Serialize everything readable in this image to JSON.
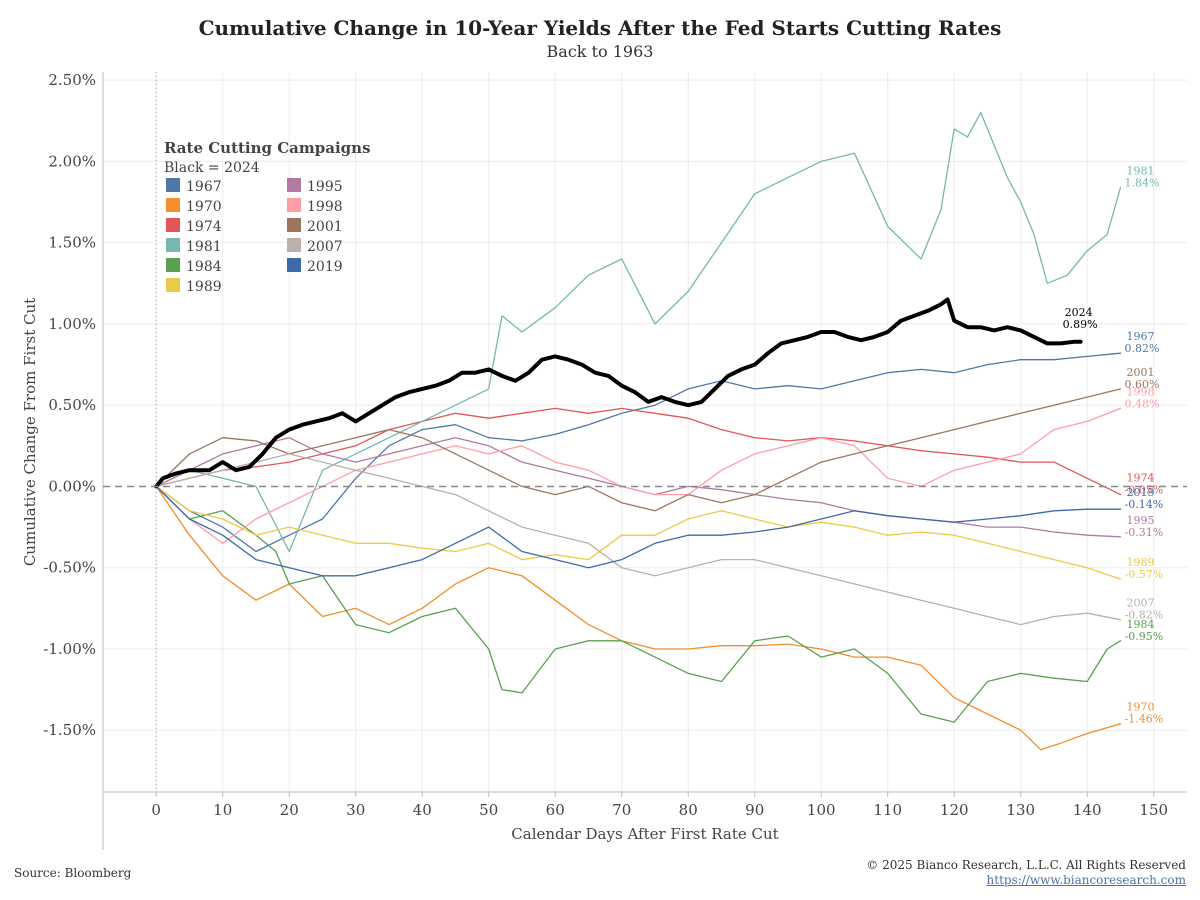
{
  "chart_data": {
    "type": "line",
    "title": "Cumulative Change in 10-Year Yields After the Fed Starts Cutting Rates",
    "subtitle": "Back to 1963",
    "xlabel": "Calendar Days After First Rate Cut",
    "ylabel": "Cumulative Change From First Cut",
    "xlim": [
      -8,
      155
    ],
    "ylim": [
      -1.88,
      2.55
    ],
    "x_ticks": [
      "0",
      "10",
      "20",
      "30",
      "40",
      "50",
      "60",
      "70",
      "80",
      "90",
      "100",
      "110",
      "120",
      "130",
      "140",
      "150"
    ],
    "y_ticks": [
      "2.50%",
      "2.00%",
      "1.50%",
      "1.00%",
      "0.50%",
      "0.00%",
      "-0.50%",
      "-1.00%",
      "-1.50%"
    ],
    "grid": true,
    "legend_title": "Rate Cutting Campaigns",
    "legend_subtitle": "Black = 2024",
    "legend_placement": "top-left",
    "series": [
      {
        "name": "1967",
        "color": "#4e79a7",
        "end_label": "0.82%",
        "x": [
          0,
          5,
          10,
          15,
          20,
          25,
          30,
          35,
          40,
          45,
          50,
          55,
          60,
          65,
          70,
          75,
          80,
          85,
          90,
          95,
          100,
          105,
          110,
          115,
          120,
          125,
          130,
          135,
          140,
          145
        ],
        "y": [
          0,
          -0.15,
          -0.25,
          -0.4,
          -0.3,
          -0.2,
          0.05,
          0.25,
          0.35,
          0.38,
          0.3,
          0.28,
          0.32,
          0.38,
          0.45,
          0.5,
          0.6,
          0.65,
          0.6,
          0.62,
          0.6,
          0.65,
          0.7,
          0.72,
          0.7,
          0.75,
          0.78,
          0.78,
          0.8,
          0.82
        ]
      },
      {
        "name": "1970",
        "color": "#f28e2b",
        "end_label": "-1.46%",
        "x": [
          0,
          5,
          10,
          15,
          20,
          25,
          30,
          35,
          40,
          45,
          50,
          55,
          60,
          65,
          70,
          75,
          80,
          85,
          90,
          95,
          100,
          105,
          110,
          115,
          120,
          125,
          130,
          133,
          136,
          140,
          145
        ],
        "y": [
          0,
          -0.3,
          -0.55,
          -0.7,
          -0.6,
          -0.8,
          -0.75,
          -0.85,
          -0.75,
          -0.6,
          -0.5,
          -0.55,
          -0.7,
          -0.85,
          -0.95,
          -1.0,
          -1.0,
          -0.98,
          -0.98,
          -0.97,
          -1.0,
          -1.05,
          -1.05,
          -1.1,
          -1.3,
          -1.4,
          -1.5,
          -1.62,
          -1.58,
          -1.52,
          -1.46
        ]
      },
      {
        "name": "1974",
        "color": "#e15759",
        "end_label": "-0.05%",
        "x": [
          0,
          5,
          10,
          15,
          20,
          25,
          30,
          35,
          40,
          45,
          50,
          55,
          60,
          65,
          70,
          75,
          80,
          85,
          90,
          95,
          100,
          105,
          110,
          115,
          120,
          125,
          130,
          135,
          140,
          145
        ],
        "y": [
          0,
          0.05,
          0.1,
          0.12,
          0.15,
          0.2,
          0.25,
          0.35,
          0.4,
          0.45,
          0.42,
          0.45,
          0.48,
          0.45,
          0.48,
          0.45,
          0.42,
          0.35,
          0.3,
          0.28,
          0.3,
          0.28,
          0.25,
          0.22,
          0.2,
          0.18,
          0.15,
          0.15,
          0.05,
          -0.05
        ]
      },
      {
        "name": "1981",
        "color": "#76b7b2",
        "end_label": "1.84%",
        "x": [
          0,
          5,
          10,
          15,
          20,
          25,
          30,
          35,
          40,
          45,
          50,
          52,
          55,
          60,
          65,
          70,
          75,
          80,
          85,
          90,
          95,
          100,
          105,
          110,
          115,
          118,
          120,
          122,
          124,
          126,
          128,
          130,
          132,
          134,
          137,
          140,
          143,
          145
        ],
        "y": [
          0,
          0.1,
          0.05,
          0.0,
          -0.4,
          0.1,
          0.2,
          0.3,
          0.4,
          0.5,
          0.6,
          1.05,
          0.95,
          1.1,
          1.3,
          1.4,
          1.0,
          1.2,
          1.5,
          1.8,
          1.9,
          2.0,
          2.05,
          1.6,
          1.4,
          1.7,
          2.2,
          2.15,
          2.3,
          2.1,
          1.9,
          1.75,
          1.55,
          1.25,
          1.3,
          1.45,
          1.55,
          1.84
        ]
      },
      {
        "name": "1984",
        "color": "#59a14f",
        "end_label": "-0.95%",
        "x": [
          0,
          5,
          10,
          15,
          18,
          20,
          25,
          30,
          35,
          40,
          45,
          50,
          52,
          55,
          60,
          65,
          70,
          75,
          80,
          85,
          90,
          95,
          100,
          105,
          110,
          115,
          120,
          125,
          130,
          135,
          140,
          143,
          145
        ],
        "y": [
          0,
          -0.2,
          -0.15,
          -0.3,
          -0.4,
          -0.6,
          -0.55,
          -0.85,
          -0.9,
          -0.8,
          -0.75,
          -1.0,
          -1.25,
          -1.27,
          -1.0,
          -0.95,
          -0.95,
          -1.05,
          -1.15,
          -1.2,
          -0.95,
          -0.92,
          -1.05,
          -1.0,
          -1.15,
          -1.4,
          -1.45,
          -1.2,
          -1.15,
          -1.18,
          -1.2,
          -1.0,
          -0.95
        ]
      },
      {
        "name": "1989",
        "color": "#edc948",
        "end_label": "-0.57%",
        "x": [
          0,
          5,
          10,
          15,
          20,
          25,
          30,
          35,
          40,
          45,
          50,
          55,
          60,
          65,
          70,
          75,
          80,
          85,
          90,
          95,
          100,
          105,
          110,
          115,
          120,
          125,
          130,
          135,
          140,
          145
        ],
        "y": [
          0,
          -0.15,
          -0.2,
          -0.3,
          -0.25,
          -0.3,
          -0.35,
          -0.35,
          -0.38,
          -0.4,
          -0.35,
          -0.45,
          -0.42,
          -0.45,
          -0.3,
          -0.3,
          -0.2,
          -0.15,
          -0.2,
          -0.25,
          -0.22,
          -0.25,
          -0.3,
          -0.28,
          -0.3,
          -0.35,
          -0.4,
          -0.45,
          -0.5,
          -0.57
        ]
      },
      {
        "name": "1995",
        "color": "#b07aa1",
        "end_label": "-0.31%",
        "x": [
          0,
          5,
          10,
          15,
          20,
          25,
          30,
          35,
          40,
          45,
          50,
          55,
          60,
          65,
          70,
          75,
          80,
          85,
          90,
          95,
          100,
          105,
          110,
          115,
          120,
          125,
          130,
          135,
          140,
          145
        ],
        "y": [
          0,
          0.1,
          0.2,
          0.25,
          0.3,
          0.2,
          0.15,
          0.2,
          0.25,
          0.3,
          0.25,
          0.15,
          0.1,
          0.05,
          0.0,
          -0.05,
          0.0,
          -0.02,
          -0.05,
          -0.08,
          -0.1,
          -0.15,
          -0.18,
          -0.2,
          -0.22,
          -0.25,
          -0.25,
          -0.28,
          -0.3,
          -0.31
        ]
      },
      {
        "name": "1998",
        "color": "#ff9da7",
        "end_label": "0.48%",
        "x": [
          0,
          5,
          10,
          15,
          20,
          25,
          30,
          35,
          40,
          45,
          50,
          55,
          60,
          65,
          70,
          75,
          80,
          85,
          90,
          95,
          100,
          105,
          110,
          115,
          120,
          125,
          130,
          135,
          140,
          145
        ],
        "y": [
          0,
          -0.2,
          -0.35,
          -0.2,
          -0.1,
          0.0,
          0.1,
          0.15,
          0.2,
          0.25,
          0.2,
          0.25,
          0.15,
          0.1,
          0.0,
          -0.05,
          -0.05,
          0.1,
          0.2,
          0.25,
          0.3,
          0.25,
          0.05,
          0.0,
          0.1,
          0.15,
          0.2,
          0.35,
          0.4,
          0.48
        ]
      },
      {
        "name": "2001",
        "color": "#9c755f",
        "end_label": "0.60%",
        "x": [
          0,
          5,
          10,
          15,
          20,
          25,
          30,
          35,
          40,
          45,
          50,
          55,
          60,
          65,
          70,
          75,
          80,
          85,
          90,
          95,
          100,
          105,
          110,
          115,
          120,
          125,
          130,
          135,
          140,
          145
        ],
        "y": [
          0,
          0.2,
          0.3,
          0.28,
          0.2,
          0.25,
          0.3,
          0.35,
          0.3,
          0.2,
          0.1,
          0.0,
          -0.05,
          0.0,
          -0.1,
          -0.15,
          -0.05,
          -0.1,
          -0.05,
          0.05,
          0.15,
          0.2,
          0.25,
          0.3,
          0.35,
          0.4,
          0.45,
          0.5,
          0.55,
          0.6
        ]
      },
      {
        "name": "2007",
        "color": "#bab0ac",
        "end_label": "-0.82%",
        "x": [
          0,
          5,
          10,
          15,
          20,
          25,
          30,
          35,
          40,
          45,
          50,
          55,
          60,
          65,
          70,
          75,
          80,
          85,
          90,
          95,
          100,
          105,
          110,
          115,
          120,
          125,
          130,
          135,
          140,
          145
        ],
        "y": [
          0,
          0.05,
          0.1,
          0.15,
          0.2,
          0.15,
          0.1,
          0.05,
          0.0,
          -0.05,
          -0.15,
          -0.25,
          -0.3,
          -0.35,
          -0.5,
          -0.55,
          -0.5,
          -0.45,
          -0.45,
          -0.5,
          -0.55,
          -0.6,
          -0.65,
          -0.7,
          -0.75,
          -0.8,
          -0.85,
          -0.8,
          -0.78,
          -0.82
        ]
      },
      {
        "name": "2019",
        "color": "#3f6aa8",
        "end_label": "-0.14%",
        "x": [
          0,
          5,
          10,
          15,
          20,
          25,
          30,
          35,
          40,
          45,
          50,
          55,
          60,
          65,
          70,
          75,
          80,
          85,
          90,
          95,
          100,
          105,
          110,
          115,
          120,
          125,
          130,
          135,
          140,
          145
        ],
        "y": [
          0,
          -0.2,
          -0.3,
          -0.45,
          -0.5,
          -0.55,
          -0.55,
          -0.5,
          -0.45,
          -0.35,
          -0.25,
          -0.4,
          -0.45,
          -0.5,
          -0.45,
          -0.35,
          -0.3,
          -0.3,
          -0.28,
          -0.25,
          -0.2,
          -0.15,
          -0.18,
          -0.2,
          -0.22,
          -0.2,
          -0.18,
          -0.15,
          -0.14,
          -0.14
        ]
      },
      {
        "name": "2024",
        "color": "#000000",
        "end_label": "0.89%",
        "x": [
          0,
          1,
          3,
          5,
          8,
          10,
          12,
          14,
          16,
          18,
          20,
          22,
          24,
          26,
          28,
          30,
          32,
          34,
          36,
          38,
          40,
          42,
          44,
          46,
          48,
          50,
          52,
          54,
          56,
          58,
          60,
          62,
          64,
          66,
          68,
          70,
          72,
          74,
          76,
          78,
          80,
          82,
          84,
          86,
          88,
          90,
          92,
          94,
          96,
          98,
          100,
          102,
          104,
          106,
          108,
          110,
          112,
          114,
          116,
          118,
          119,
          120,
          122,
          124,
          126,
          128,
          130,
          132,
          134,
          136,
          138,
          139
        ],
        "y": [
          0,
          0.05,
          0.08,
          0.1,
          0.1,
          0.15,
          0.1,
          0.12,
          0.2,
          0.3,
          0.35,
          0.38,
          0.4,
          0.42,
          0.45,
          0.4,
          0.45,
          0.5,
          0.55,
          0.58,
          0.6,
          0.62,
          0.65,
          0.7,
          0.7,
          0.72,
          0.68,
          0.65,
          0.7,
          0.78,
          0.8,
          0.78,
          0.75,
          0.7,
          0.68,
          0.62,
          0.58,
          0.52,
          0.55,
          0.52,
          0.5,
          0.52,
          0.6,
          0.68,
          0.72,
          0.75,
          0.82,
          0.88,
          0.9,
          0.92,
          0.95,
          0.95,
          0.92,
          0.9,
          0.92,
          0.95,
          1.02,
          1.05,
          1.08,
          1.12,
          1.15,
          1.02,
          0.98,
          0.98,
          0.96,
          0.98,
          0.96,
          0.92,
          0.88,
          0.88,
          0.89,
          0.89
        ]
      }
    ]
  },
  "footer": {
    "source": "Source: Bloomberg",
    "copyright": "© 2025 Bianco Research, L.L.C. All Rights Reserved",
    "url": "https://www.biancoresearch.com"
  }
}
